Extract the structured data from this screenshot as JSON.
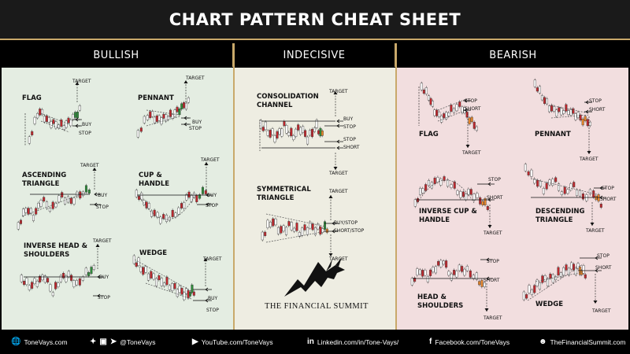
{
  "title": "CHART PATTERN CHEAT SHEET",
  "columns": [
    "BULLISH",
    "INDECISIVE",
    "BEARISH"
  ],
  "bullish": {
    "flag": {
      "name": "FLAG",
      "target": "TARGET",
      "buy": "BUY",
      "stop": "STOP"
    },
    "pennant": {
      "name": "PENNANT",
      "target": "TARGET",
      "buy": "BUY",
      "stop": "STOP"
    },
    "ascending_triangle": {
      "name": "ASCENDING\nTRIANGLE",
      "target": "TARGET",
      "buy": "BUY",
      "stop": "STOP"
    },
    "cup_handle": {
      "name": "CUP &\nHANDLE",
      "target": "TARGET",
      "buy": "BUY",
      "stop": "STOP"
    },
    "inverse_hs": {
      "name": "INVERSE HEAD &\nSHOULDERS",
      "target": "TARGET",
      "buy": "BUY",
      "stop": "STOP"
    },
    "wedge": {
      "name": "WEDGE",
      "target": "TARGET",
      "buy": "BUY",
      "stop": "STOP"
    }
  },
  "indecisive": {
    "consolidation": {
      "name": "CONSOLIDATION\nCHANNEL",
      "target_top": "TARGET",
      "buy": "BUY",
      "stop1": "STOP",
      "stop2": "STOP",
      "short": "SHORT",
      "target_bottom": "TARGET"
    },
    "symmetrical": {
      "name": "SYMMETRICAL\nTRIANGLE",
      "target_top": "TARGET",
      "buystop": "BUY/STOP",
      "shortstop": "SHORT/STOP",
      "target_bottom": "TARGET"
    },
    "logo_text": "THE FINANCIAL SUMMIT"
  },
  "bearish": {
    "flag": {
      "name": "FLAG",
      "stop": "STOP",
      "short": "SHORT",
      "target": "TARGET"
    },
    "pennant": {
      "name": "PENNANT",
      "stop": "STOP",
      "short": "SHORT",
      "target": "TARGET"
    },
    "inverse_cup": {
      "name": "INVERSE CUP &\nHANDLE",
      "stop": "STOP",
      "short": "SHORT",
      "target": "TARGET"
    },
    "descending_triangle": {
      "name": "DESCENDING\nTRIANGLE",
      "stop": "STOP",
      "short": "SHORT",
      "target": "TARGET"
    },
    "hs": {
      "name": "HEAD &\nSHOULDERS",
      "stop": "STOP",
      "short": "SHORT",
      "target": "TARGET"
    },
    "wedge": {
      "name": "WEDGE",
      "stop": "STOP",
      "short": "SHORT",
      "target": "TARGET"
    }
  },
  "footer": {
    "website": "ToneVays.com",
    "social": "@ToneVays",
    "youtube": "YouTube.com/ToneVays",
    "linkedin": "Linkedin.com/in/Tone-Vays/",
    "facebook": "Facebook.com/ToneVays",
    "summit": "TheFinancialSummit.com"
  },
  "colors": {
    "gold": "#c9a96a",
    "bull_bg": "#e4ede2",
    "indecisive_bg": "#eeede2",
    "bear_bg": "#f2dedf",
    "green": "#2e8b3a",
    "red": "#c0272d",
    "orange": "#e8862a"
  }
}
